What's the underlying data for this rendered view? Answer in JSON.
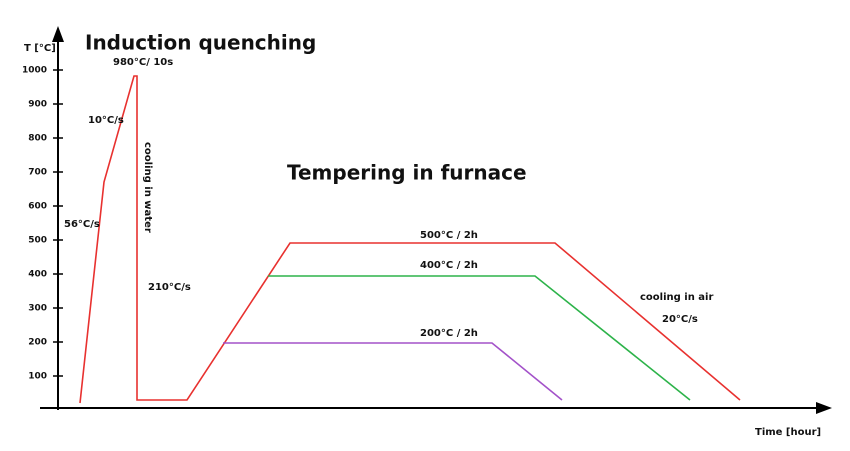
{
  "title": "Induction  quenching",
  "subtitle": "Tempering in furnace",
  "y_axis": {
    "label": "T [°C]",
    "ticks": [
      100,
      200,
      300,
      400,
      500,
      600,
      700,
      800,
      900,
      1000
    ]
  },
  "x_axis": {
    "label": "Time [hour]"
  },
  "annotations": {
    "peak": "980°C/ 10s",
    "rate_upper": "10°C/s",
    "rate_lower": "56°C/s",
    "cooling_water": "cooling in water",
    "cooling_rate": "210°C/s",
    "temper_500": "500°C / 2h",
    "temper_400": "400°C / 2h",
    "temper_200": "200°C / 2h",
    "cooling_air": "cooling  in air",
    "air_rate": "20°C/s"
  }
}
